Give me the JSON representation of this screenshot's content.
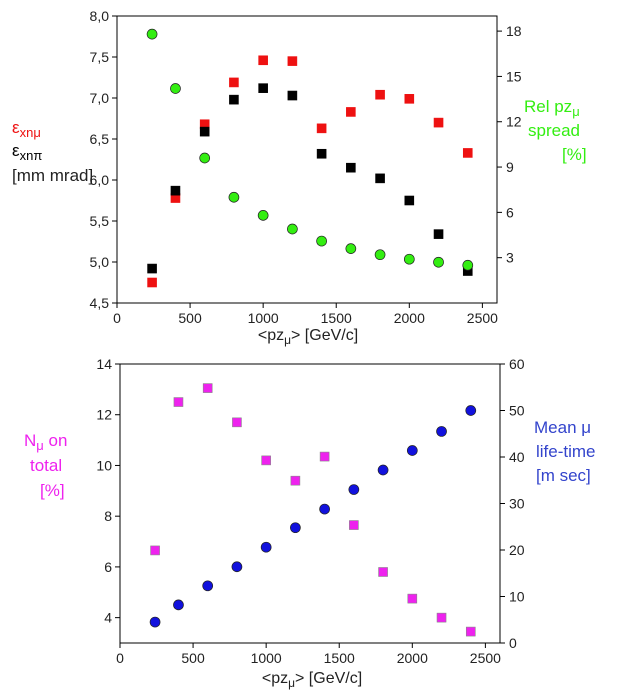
{
  "chart_data": [
    {
      "type": "scatter",
      "title": "",
      "xlabel_main": "<pz",
      "xlabel_sub": "μ",
      "xlabel_tail": ">  [GeV/c]",
      "xlim": [
        0,
        2600
      ],
      "xticks": [
        0,
        500,
        1000,
        1500,
        2000,
        2500
      ],
      "ylim_left": [
        4.5,
        8.0
      ],
      "yticks_left": [
        "4,5",
        "5,0",
        "5,5",
        "6,0",
        "6,5",
        "7,0",
        "7,5",
        "8,0"
      ],
      "ylim_right": [
        0,
        19
      ],
      "yticks_right": [
        3,
        6,
        9,
        12,
        15,
        18
      ],
      "left_label": {
        "line1_sym": "ε",
        "line1_sub": "xnμ",
        "line2_sym": "ε",
        "line2_sub": "xnπ",
        "line3": "[mm mrad]"
      },
      "right_label": {
        "line1_main": "Rel pz",
        "line1_sub": "μ",
        "line2": "spread",
        "line3": "[%]"
      },
      "grid": false,
      "series": [
        {
          "axis": "left",
          "marker": "square",
          "color": "#ee1111",
          "x": [
            240,
            400,
            600,
            800,
            1000,
            1200,
            1400,
            1600,
            1800,
            2000,
            2200,
            2400
          ],
          "y": [
            4.75,
            5.78,
            6.68,
            7.19,
            7.46,
            7.45,
            6.63,
            6.83,
            7.04,
            6.99,
            6.7,
            6.33
          ]
        },
        {
          "axis": "left",
          "marker": "square",
          "color": "#000000",
          "x": [
            240,
            400,
            600,
            800,
            1000,
            1200,
            1400,
            1600,
            1800,
            2000,
            2200,
            2400
          ],
          "y": [
            4.92,
            5.87,
            6.59,
            6.98,
            7.12,
            7.03,
            6.32,
            6.15,
            6.02,
            5.75,
            5.34,
            4.89
          ]
        },
        {
          "axis": "right",
          "marker": "circle",
          "color": "#33ee11",
          "x": [
            240,
            400,
            600,
            800,
            1000,
            1200,
            1400,
            1600,
            1800,
            2000,
            2200,
            2400
          ],
          "y": [
            17.8,
            14.2,
            9.6,
            7.0,
            5.8,
            4.9,
            4.1,
            3.6,
            3.2,
            2.9,
            2.7,
            2.5
          ]
        }
      ]
    },
    {
      "type": "scatter",
      "title": "",
      "xlabel_main": "<pz",
      "xlabel_sub": "μ",
      "xlabel_tail": ">  [GeV/c]",
      "xlim": [
        0,
        2600
      ],
      "xticks": [
        0,
        500,
        1000,
        1500,
        2000,
        2500
      ],
      "ylim_left": [
        3,
        14
      ],
      "yticks_left": [
        4,
        6,
        8,
        10,
        12,
        14
      ],
      "ylim_right": [
        0,
        60
      ],
      "yticks_right": [
        0,
        10,
        20,
        30,
        40,
        50,
        60
      ],
      "left_label": {
        "line1_main": "N",
        "line1_sub": "μ",
        "line1_tail": " on",
        "line2": "total",
        "line3": "[%]"
      },
      "right_label": {
        "line1": "Mean μ",
        "line2": "life-time",
        "line3": "[m sec]"
      },
      "grid": false,
      "series": [
        {
          "axis": "left",
          "marker": "square",
          "color": "#ee22ee",
          "x": [
            240,
            400,
            600,
            800,
            1000,
            1200,
            1400,
            1600,
            1800,
            2000,
            2200,
            2400
          ],
          "y": [
            6.65,
            12.5,
            13.05,
            11.7,
            10.2,
            9.4,
            10.35,
            7.65,
            5.8,
            4.75,
            4.0,
            3.45
          ]
        },
        {
          "axis": "right",
          "marker": "circle",
          "color": "#1111dd",
          "x": [
            240,
            400,
            600,
            800,
            1000,
            1200,
            1400,
            1600,
            1800,
            2000,
            2200,
            2400
          ],
          "y": [
            4.5,
            8.2,
            12.3,
            16.4,
            20.6,
            24.8,
            28.8,
            33.0,
            37.2,
            41.4,
            45.5,
            50.0
          ]
        }
      ]
    }
  ]
}
